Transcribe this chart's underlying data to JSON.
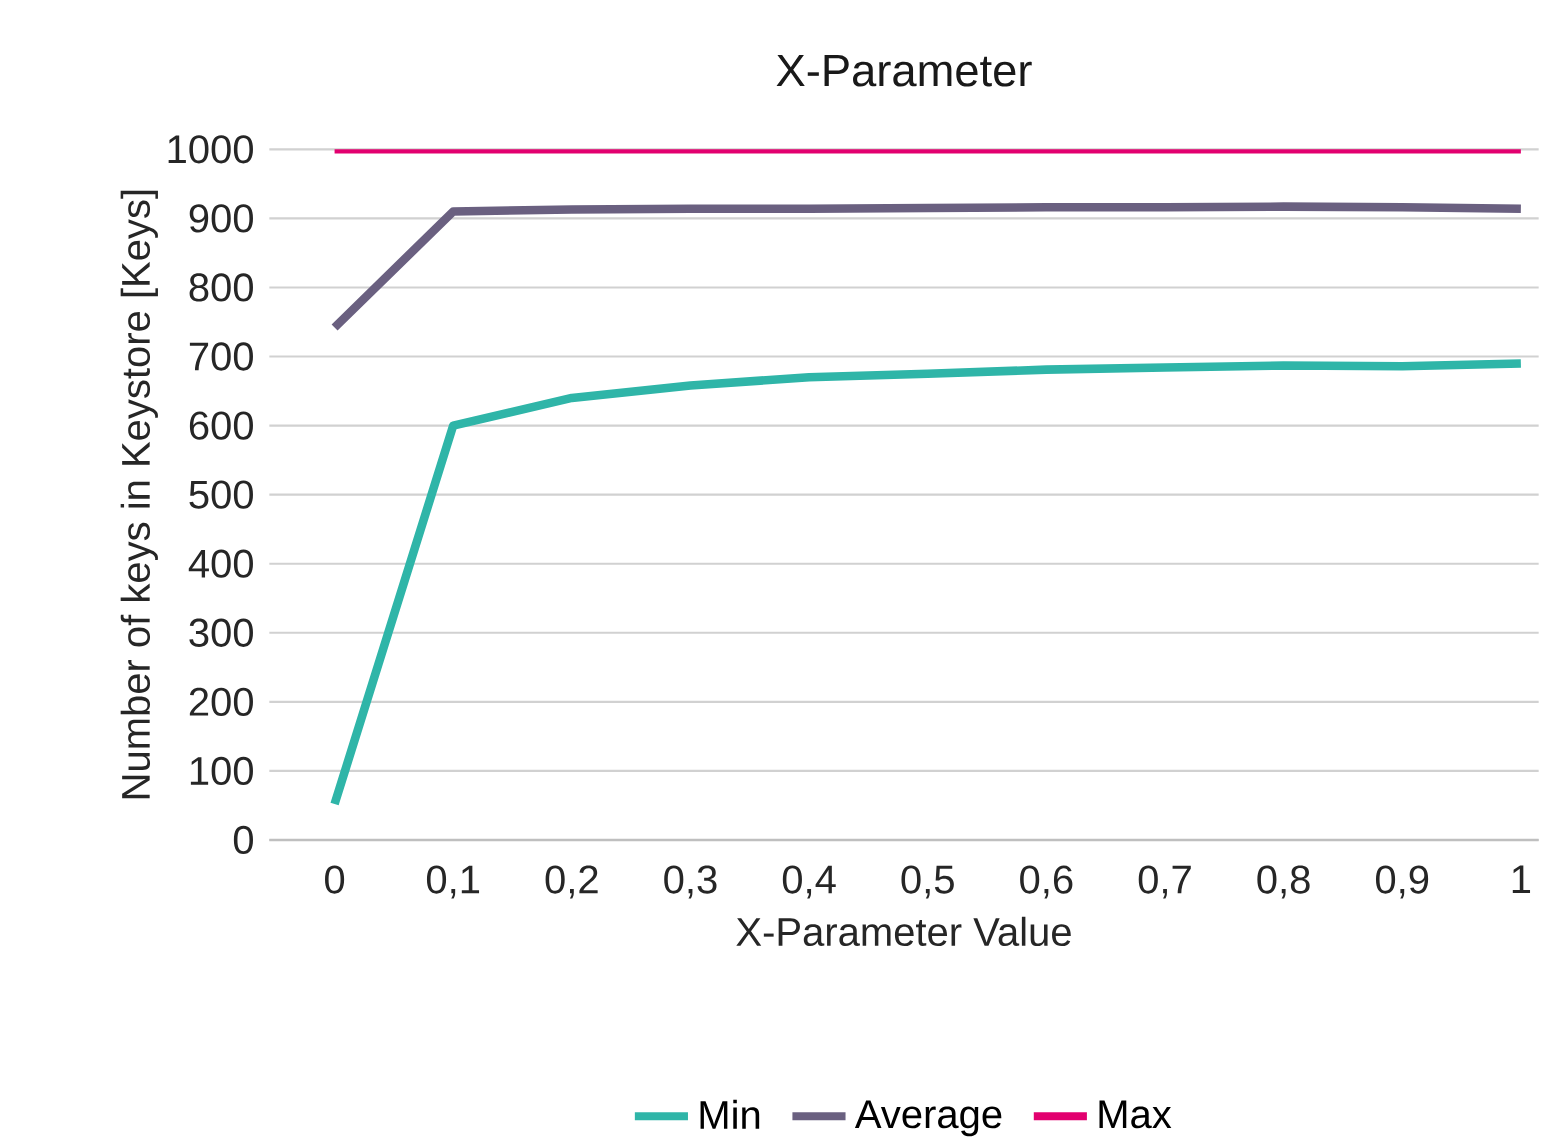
{
  "chart_data": {
    "type": "line",
    "title": "X-Parameter",
    "xlabel": "X-Parameter Value",
    "ylabel": "Number of keys in Keystore [Keys]",
    "categories": [
      "0",
      "0,1",
      "0,2",
      "0,3",
      "0,4",
      "0,5",
      "0,6",
      "0,7",
      "0,8",
      "0,9",
      "1"
    ],
    "series": [
      {
        "name": "Min",
        "color": "#2fb5a8",
        "values": [
          52,
          600,
          640,
          658,
          670,
          675,
          681,
          684,
          687,
          686,
          690
        ]
      },
      {
        "name": "Average",
        "color": "#6a6080",
        "values": [
          742,
          910,
          913,
          914,
          914,
          915,
          916,
          916,
          917,
          916,
          914
        ]
      },
      {
        "name": "Max",
        "color": "#e2006f",
        "values": [
          1000,
          1000,
          1000,
          1000,
          1000,
          1000,
          1000,
          1000,
          1000,
          1000,
          1000
        ]
      }
    ],
    "ylim": [
      0,
      1000
    ],
    "yticks": [
      0,
      100,
      200,
      300,
      400,
      500,
      600,
      700,
      800,
      900,
      1000
    ],
    "grid": "y",
    "legend": "bottom",
    "marker": "none",
    "line_style": "solid"
  }
}
